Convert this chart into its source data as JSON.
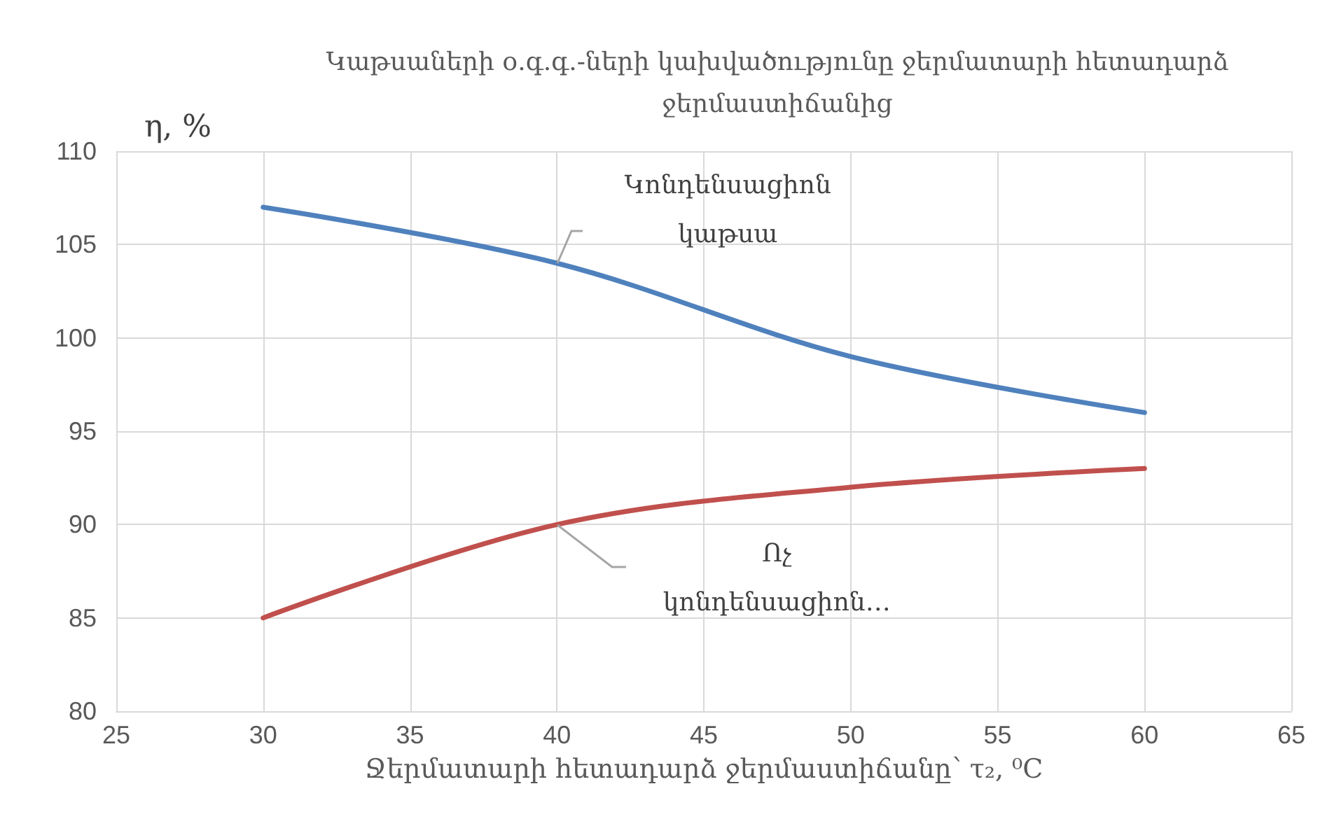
{
  "chart_data": {
    "type": "line",
    "title": "Կաթսաների օ.գ.գ.-ների կախվածությունը ջերմատարի հետադարձ ջերմաստիճանից",
    "xlabel": "Ջերմատարի հետադարձ ջերմաստիճանը՝ τ₂, ⁰C",
    "ylabel": "η, %",
    "x": [
      30,
      40,
      50,
      60
    ],
    "series": [
      {
        "name": "Կոնդենսացիոն կաթսա",
        "color": "#4f81bd",
        "values": [
          107,
          104,
          99,
          96
        ]
      },
      {
        "name": "Ոչ կոնդենսացիոն…",
        "color": "#c0504d",
        "values": [
          85,
          90,
          92,
          93
        ]
      }
    ],
    "xlim": [
      25,
      65
    ],
    "xticks": [
      25,
      30,
      35,
      40,
      45,
      50,
      55,
      60,
      65
    ],
    "ylim": [
      80,
      110
    ],
    "yticks": [
      80,
      85,
      90,
      95,
      100,
      105,
      110
    ],
    "grid": true,
    "legend": false,
    "marker": "none",
    "line_style": "solid"
  }
}
